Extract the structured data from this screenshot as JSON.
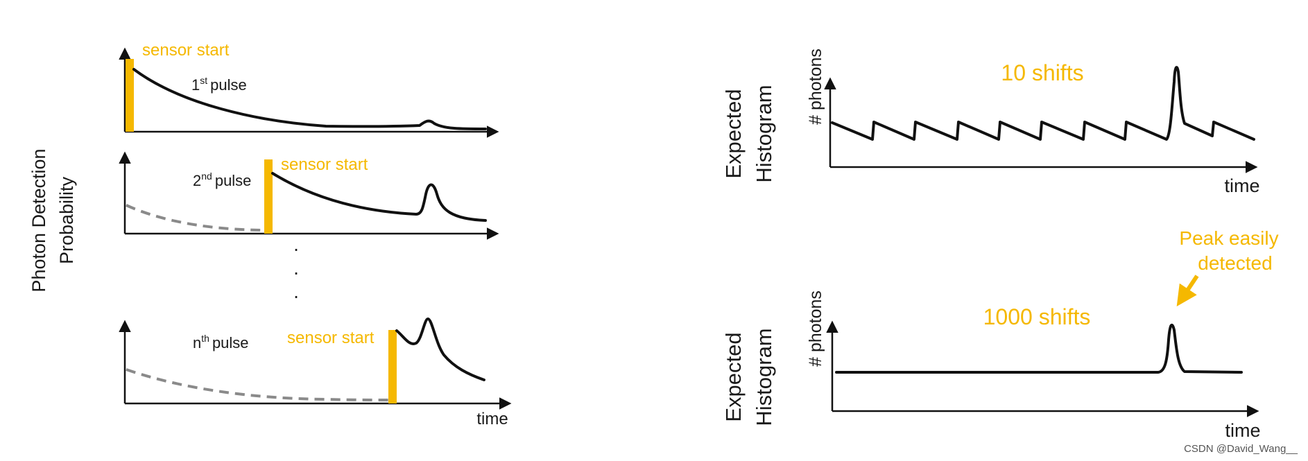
{
  "left": {
    "y_axis_label_line1": "Photon Detection",
    "y_axis_label_line2": "Probability",
    "x_axis_label": "time",
    "ellipsis": "·",
    "panels": [
      {
        "pulse_base": "1",
        "pulse_sup": "st",
        "pulse_word": "pulse",
        "sensor_label": "sensor start"
      },
      {
        "pulse_base": "2",
        "pulse_sup": "nd",
        "pulse_word": "pulse",
        "sensor_label": "sensor start"
      },
      {
        "pulse_base": "n",
        "pulse_sup": "th",
        "pulse_word": "pulse",
        "sensor_label": "sensor start"
      }
    ]
  },
  "right": {
    "top": {
      "group_label_line1": "Expected",
      "group_label_line2": "Histogram",
      "y_axis_label": "# photons",
      "x_axis_label": "time",
      "shifts_label": "10 shifts"
    },
    "bottom": {
      "group_label_line1": "Expected",
      "group_label_line2": "Histogram",
      "y_axis_label": "# photons",
      "x_axis_label": "time",
      "shifts_label": "1000 shifts",
      "annotation_line1": "Peak easily",
      "annotation_line2": "detected"
    }
  },
  "watermark": "CSDN @David_Wang__",
  "colors": {
    "accent": "#f5b800",
    "curve": "#111111",
    "dashed": "#8a8a8a"
  }
}
